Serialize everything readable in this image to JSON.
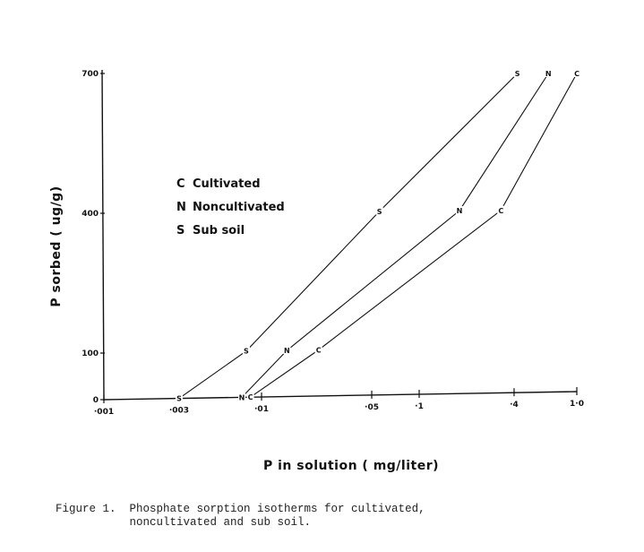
{
  "chart_data": {
    "type": "line",
    "title": "",
    "xlabel": "P in solution ( mg/liter)",
    "ylabel": "P sorbed ( ug/g)",
    "x_scale": "log",
    "xlim": [
      0.001,
      1.0
    ],
    "ylim": [
      0,
      700
    ],
    "x_ticks": [
      {
        "value": 0.001,
        "label": "·001"
      },
      {
        "value": 0.003,
        "label": "·003"
      },
      {
        "value": 0.01,
        "label": "·01"
      },
      {
        "value": 0.05,
        "label": "·05"
      },
      {
        "value": 0.1,
        "label": "·1"
      },
      {
        "value": 0.4,
        "label": "·4"
      },
      {
        "value": 1.0,
        "label": "1·0"
      }
    ],
    "y_ticks": [
      {
        "value": 0,
        "label": "0"
      },
      {
        "value": 100,
        "label": "100"
      },
      {
        "value": 400,
        "label": "400"
      },
      {
        "value": 700,
        "label": "700"
      }
    ],
    "grid": false,
    "legend_position": "upper-left",
    "series": [
      {
        "name": "Cultivated",
        "marker": "C",
        "x": [
          0.0085,
          0.023,
          0.33,
          1.0
        ],
        "y": [
          0,
          100,
          400,
          700
        ]
      },
      {
        "name": "Noncultivated",
        "marker": "N",
        "x": [
          0.0075,
          0.0145,
          0.18,
          0.66
        ],
        "y": [
          0,
          100,
          400,
          700
        ]
      },
      {
        "name": "Sub soil",
        "marker": "S",
        "x": [
          0.003,
          0.008,
          0.056,
          0.42
        ],
        "y": [
          0,
          100,
          400,
          700
        ]
      }
    ],
    "legend": [
      {
        "marker": "C",
        "label": "Cultivated"
      },
      {
        "marker": "N",
        "label": "Noncultivated"
      },
      {
        "marker": "S",
        "label": "Sub soil"
      }
    ]
  },
  "caption": {
    "line1": "Figure 1.  Phosphate sorption isotherms for cultivated,",
    "line2": "           noncultivated and sub soil."
  }
}
